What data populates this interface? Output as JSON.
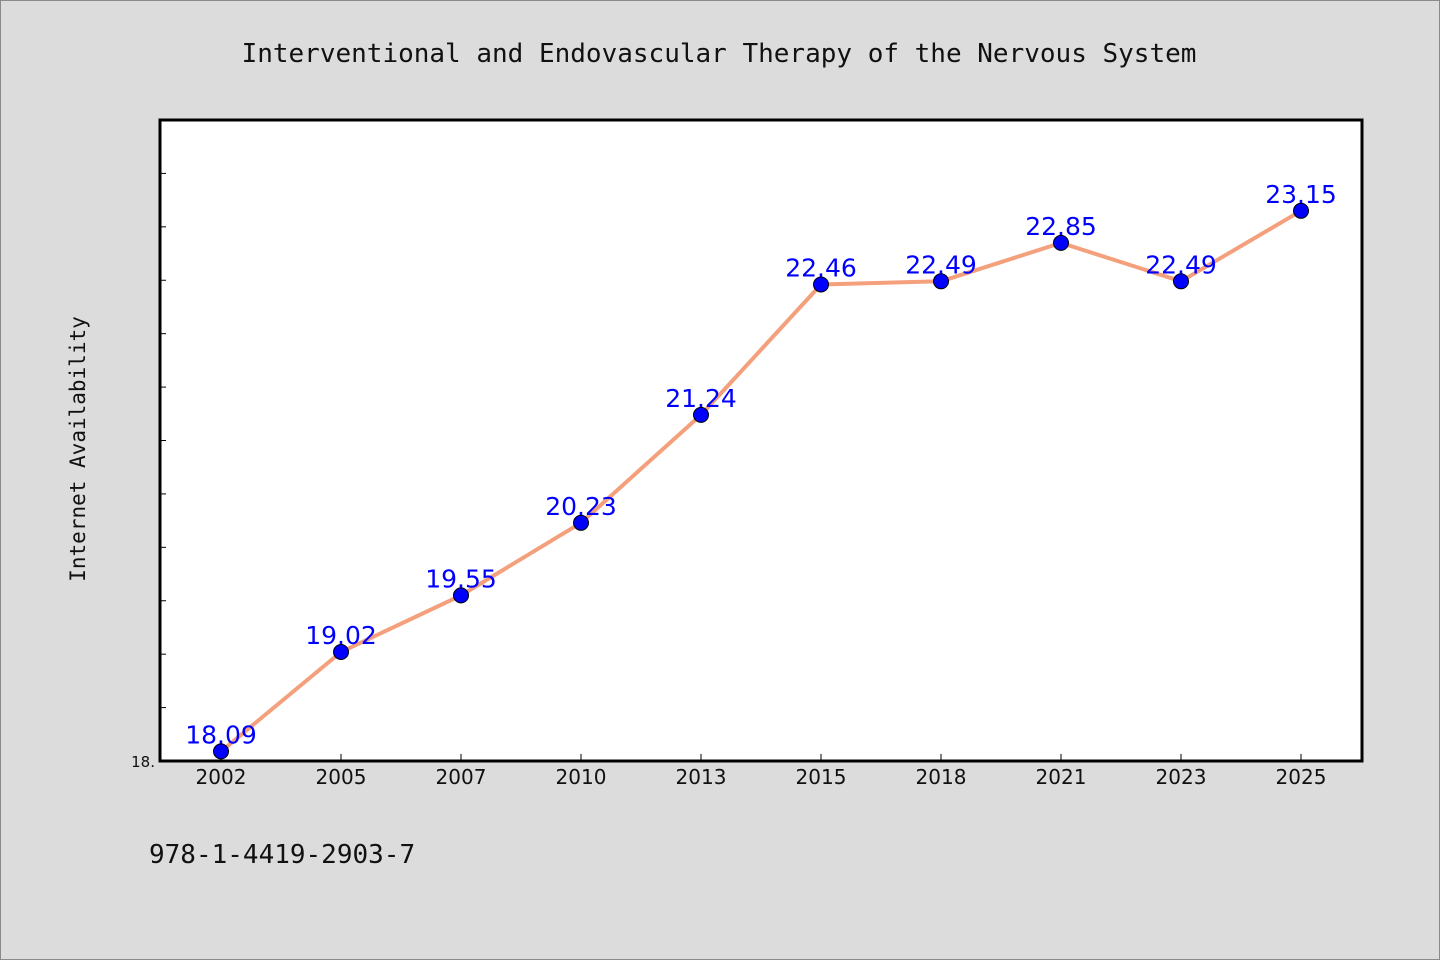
{
  "chart_data": {
    "type": "line",
    "title": "Interventional and Endovascular Therapy of the Nervous System",
    "ylabel": "Internet Availability",
    "xlabel": "",
    "categories": [
      "2002",
      "2005",
      "2007",
      "2010",
      "2013",
      "2015",
      "2018",
      "2021",
      "2023",
      "2025"
    ],
    "series": [
      {
        "values": [
          18.09,
          19.02,
          19.55,
          20.23,
          21.24,
          22.46,
          22.49,
          22.85,
          22.49,
          23.15
        ],
        "labels": [
          "18.09",
          "19.02",
          "19.55",
          "20.23",
          "21.24",
          "22.46",
          "22.49",
          "22.85",
          "22.49",
          "23.15"
        ]
      }
    ],
    "y_tick_label": "18.",
    "ylim": [
      18.0,
      24.0
    ],
    "grid": false,
    "colors": {
      "line": "#f4a07c",
      "marker": "#0000ff",
      "data_label": "#0000ff",
      "plot_background": "#ffffff",
      "figure_background": "#dcdcdc"
    }
  },
  "footer": {
    "isbn": "978-1-4419-2903-7"
  }
}
